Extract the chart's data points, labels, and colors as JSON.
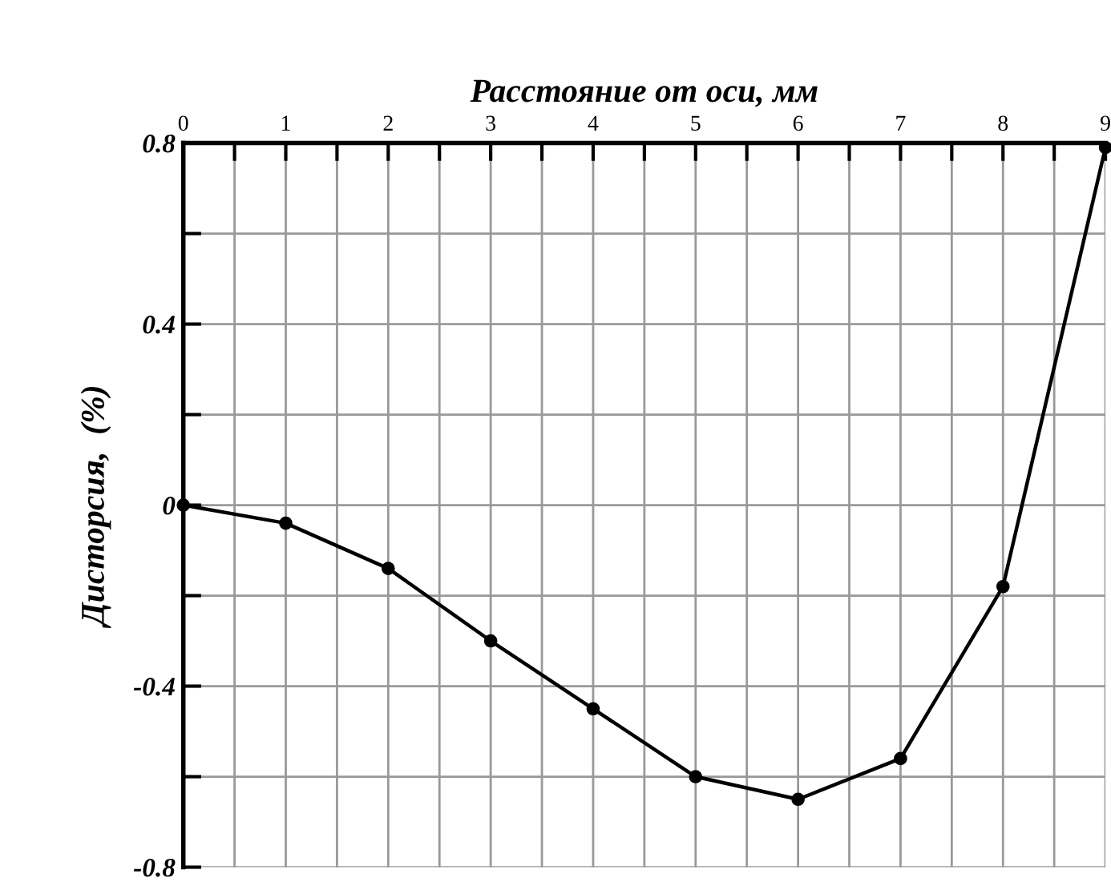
{
  "chart_data": {
    "type": "line",
    "xlabel": "Расстояние от оси, мм",
    "ylabel": "Дисторсия,  (%)",
    "x": [
      0,
      1,
      2,
      3,
      4,
      5,
      6,
      7,
      8,
      9
    ],
    "series": [
      {
        "color": "#000000",
        "values": [
          0,
          -0.04,
          -0.14,
          -0.3,
          -0.45,
          -0.6,
          -0.65,
          -0.56,
          -0.18,
          0.79
        ]
      }
    ],
    "xlim": [
      0,
      9
    ],
    "ylim": [
      -0.8,
      0.8
    ],
    "xticks": [
      0,
      {
        "value": 0.5,
        "label": null
      },
      1,
      {
        "value": 1.5,
        "label": null
      },
      2,
      {
        "value": 2.5,
        "label": null
      },
      3,
      {
        "value": 3.5,
        "label": null
      },
      4,
      {
        "value": 4.5,
        "label": null
      },
      5,
      {
        "value": 5.5,
        "label": null
      },
      6,
      {
        "value": 6.5,
        "label": null
      },
      7,
      {
        "value": 7.5,
        "label": null
      },
      8,
      {
        "value": 8.5,
        "label": null
      },
      9
    ],
    "yticks": [
      {
        "value": -0.8,
        "label": "-0.8"
      },
      {
        "value": -0.6,
        "label": null
      },
      {
        "value": -0.4,
        "label": "-0.4"
      },
      {
        "value": -0.2,
        "label": null
      },
      0,
      {
        "value": 0.2,
        "label": null
      },
      {
        "value": 0.4,
        "label": "0.4"
      },
      {
        "value": 0.6,
        "label": null
      },
      {
        "value": 0.8,
        "label": "0.8"
      }
    ],
    "grid": true,
    "marker": "circle",
    "line_style": "solid"
  }
}
